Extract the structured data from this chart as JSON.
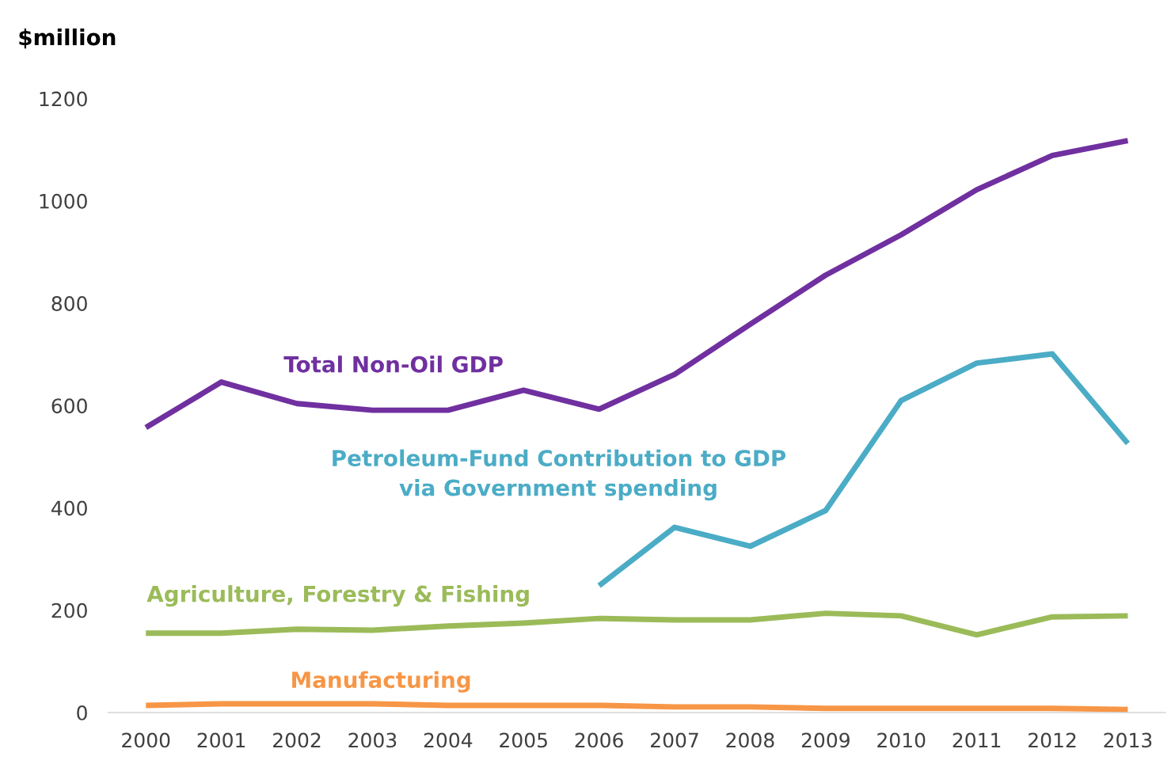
{
  "chart_data": {
    "type": "line",
    "ylabel": "$million",
    "categories": [
      "2000",
      "2001",
      "2002",
      "2003",
      "2004",
      "2005",
      "2006",
      "2007",
      "2008",
      "2009",
      "2010",
      "2011",
      "2012",
      "2013"
    ],
    "ylim": [
      0,
      1200
    ],
    "yticks": [
      0,
      200,
      400,
      600,
      800,
      1000,
      1200
    ],
    "grid": false,
    "legend": false,
    "marker": "none",
    "line_style": "solid",
    "series": [
      {
        "name": "Total Non-Oil GDP",
        "color": "#7030a0",
        "values": [
          557,
          646,
          604,
          591,
          591,
          630,
          593,
          661,
          759,
          855,
          934,
          1022,
          1089,
          1118
        ]
      },
      {
        "name": "Petroleum-Fund Contribution to GDP\nvia Government spending",
        "color": "#4bacc6",
        "values": [
          null,
          null,
          null,
          null,
          null,
          null,
          248,
          362,
          325,
          395,
          610,
          683,
          701,
          526
        ]
      },
      {
        "name": "Agriculture, Forestry & Fishing",
        "color": "#9bbb59",
        "values": [
          155,
          155,
          163,
          161,
          169,
          175,
          184,
          181,
          181,
          194,
          189,
          152,
          187,
          189
        ]
      },
      {
        "name": "Manufacturing",
        "color": "#f79646",
        "values": [
          14,
          17,
          17,
          17,
          14,
          14,
          14,
          11,
          11,
          8,
          8,
          8,
          8,
          6
        ]
      }
    ]
  }
}
